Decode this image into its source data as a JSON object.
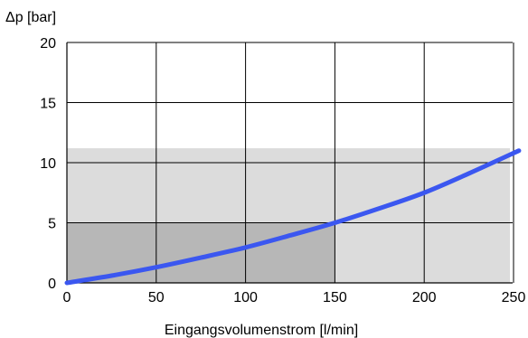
{
  "colors": {
    "line": "#3b57f0",
    "light_region": "#dcdcdc",
    "dark_region": "#b7b7b7",
    "grid": "#000000"
  },
  "chart_data": {
    "type": "line",
    "xlabel": "Eingangsvolumenstrom [l/min]",
    "ylabel": "Δp [bar]",
    "xlim": [
      0,
      250
    ],
    "ylim": [
      0,
      20
    ],
    "x_ticks": [
      "0",
      "50",
      "100",
      "150",
      "200",
      "250"
    ],
    "y_ticks": [
      "0",
      "5",
      "10",
      "15",
      "20"
    ],
    "grid": true,
    "regions": [
      {
        "x": [
          0,
          248
        ],
        "y": [
          0,
          11.2
        ],
        "shade": "light"
      },
      {
        "x": [
          0,
          150
        ],
        "y": [
          0,
          5
        ],
        "shade": "dark"
      }
    ],
    "series": [
      {
        "x": [
          0,
          25,
          50,
          75,
          100,
          125,
          150,
          175,
          200,
          225,
          253
        ],
        "y": [
          0,
          0.6,
          1.3,
          2.1,
          2.95,
          3.95,
          5.0,
          6.2,
          7.5,
          9.1,
          11.0
        ]
      }
    ]
  }
}
